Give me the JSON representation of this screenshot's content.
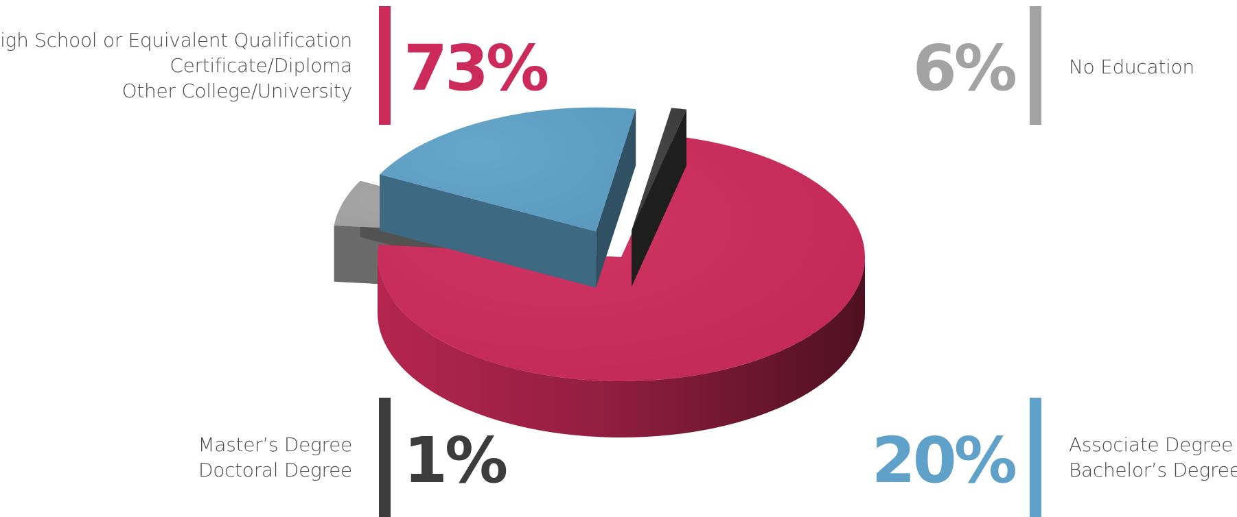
{
  "chart_data": {
    "type": "pie",
    "style": "3d-exploded",
    "slices": [
      {
        "value": 73,
        "display": "73%",
        "labels": [
          "High School or Equivalent Qualification",
          "Certificate/Diploma",
          "Other College/University"
        ],
        "color": "#cc2a5a"
      },
      {
        "value": 6,
        "display": "6%",
        "labels": [
          "No Education"
        ],
        "color": "#a3a3a3"
      },
      {
        "value": 20,
        "display": "20%",
        "labels": [
          "Associate Degree",
          "Bachelor’s Degree"
        ],
        "color": "#5fa1c8"
      },
      {
        "value": 1,
        "display": "1%",
        "labels": [
          "Master’s Degree",
          "Doctoral Degree"
        ],
        "color": "#3c3c3c"
      }
    ]
  }
}
